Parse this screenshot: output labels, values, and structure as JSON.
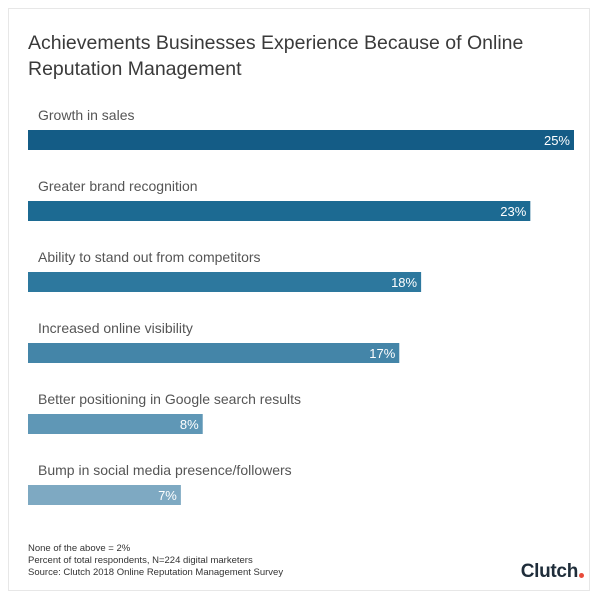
{
  "chart_data": {
    "type": "bar",
    "orientation": "horizontal",
    "title": "Achievements Businesses Experience Because of Online Reputation Management",
    "categories": [
      "Growth in sales",
      "Greater brand recognition",
      "Ability to stand out from competitors",
      "Increased online visibility",
      "Better positioning in Google search results",
      "Bump in social media presence/followers"
    ],
    "values": [
      25,
      23,
      18,
      17,
      8,
      7
    ],
    "value_labels": [
      "25%",
      "23%",
      "18%",
      "17%",
      "8%",
      "7%"
    ],
    "unit": "%",
    "colors": [
      "#145c86",
      "#1c6a92",
      "#2d789e",
      "#4485a8",
      "#5f97b6",
      "#7ea9c2"
    ],
    "xlim": [
      0,
      25
    ],
    "grid": false,
    "legend": "none"
  },
  "footnotes": [
    "None of the above = 2%",
    "Percent of total respondents, N=224 digital marketers",
    "Source: Clutch 2018 Online Reputation Management Survey"
  ],
  "brand": {
    "name": "Clutch",
    "dot_color": "#e84b3a",
    "text_color": "#1f2d3a"
  }
}
